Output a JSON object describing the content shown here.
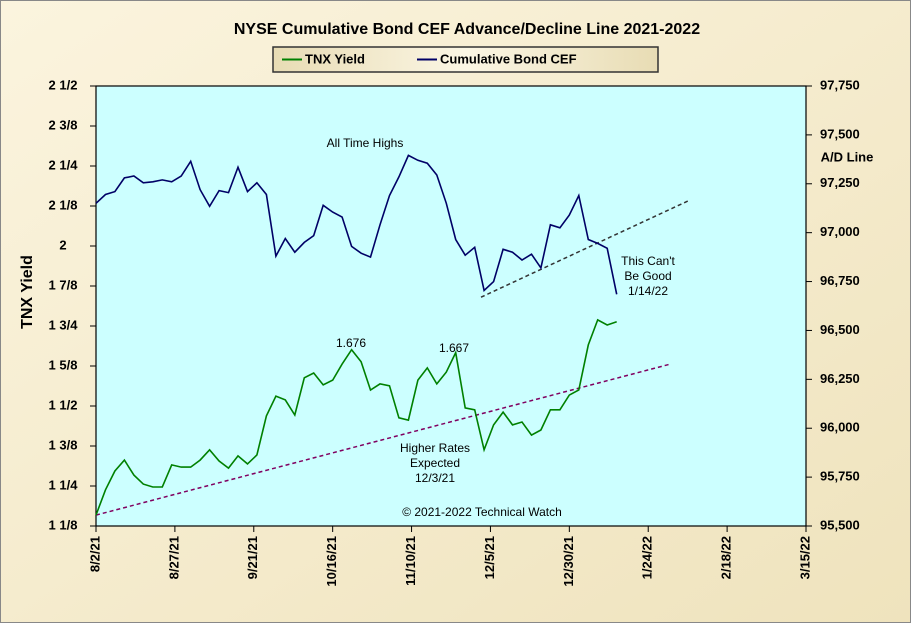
{
  "chart_data": {
    "type": "line",
    "title": "NYSE Cumulative  Bond CEF Advance/Decline  Line 2021-2022",
    "y_label": "TNX Yield",
    "y2_label": "A/D Line",
    "x": [
      "2021-08-02",
      "2021-08-05",
      "2021-08-08",
      "2021-08-11",
      "2021-08-14",
      "2021-08-17",
      "2021-08-20",
      "2021-08-23",
      "2021-08-26",
      "2021-08-29",
      "2021-09-01",
      "2021-09-04",
      "2021-09-07",
      "2021-09-10",
      "2021-09-13",
      "2021-09-16",
      "2021-09-19",
      "2021-09-22",
      "2021-09-25",
      "2021-09-28",
      "2021-10-01",
      "2021-10-04",
      "2021-10-07",
      "2021-10-10",
      "2021-10-13",
      "2021-10-16",
      "2021-10-19",
      "2021-10-22",
      "2021-10-25",
      "2021-10-28",
      "2021-10-31",
      "2021-11-03",
      "2021-11-06",
      "2021-11-09",
      "2021-11-12",
      "2021-11-15",
      "2021-11-18",
      "2021-11-21",
      "2021-11-24",
      "2021-11-27",
      "2021-11-30",
      "2021-12-03",
      "2021-12-06",
      "2021-12-09",
      "2021-12-12",
      "2021-12-15",
      "2021-12-18",
      "2021-12-21",
      "2021-12-24",
      "2021-12-27",
      "2021-12-30",
      "2022-01-02",
      "2022-01-05",
      "2022-01-08",
      "2022-01-11",
      "2022-01-14"
    ],
    "series": [
      {
        "name": "TNX Yield",
        "color": "#008000",
        "axis": "y",
        "values": [
          1.159,
          1.238,
          1.297,
          1.331,
          1.284,
          1.256,
          1.247,
          1.247,
          1.316,
          1.309,
          1.309,
          1.331,
          1.363,
          1.328,
          1.306,
          1.344,
          1.319,
          1.347,
          1.469,
          1.531,
          1.519,
          1.472,
          1.588,
          1.603,
          1.566,
          1.581,
          1.631,
          1.676,
          1.638,
          1.55,
          1.569,
          1.563,
          1.463,
          1.456,
          1.581,
          1.619,
          1.569,
          1.606,
          1.667,
          1.494,
          1.488,
          1.363,
          1.441,
          1.481,
          1.441,
          1.45,
          1.409,
          1.425,
          1.488,
          1.488,
          1.534,
          1.55,
          1.691,
          1.769,
          1.753,
          1.763
        ]
      },
      {
        "name": "Cumulative Bond CEF",
        "color": "#000066",
        "axis": "y2",
        "values": [
          97150,
          97195,
          97210,
          97280,
          97290,
          97255,
          97260,
          97270,
          97260,
          97290,
          97365,
          97220,
          97135,
          97215,
          97205,
          97335,
          97210,
          97255,
          97195,
          96880,
          96970,
          96900,
          96950,
          96985,
          97140,
          97105,
          97080,
          96930,
          96895,
          96875,
          97040,
          97190,
          97285,
          97395,
          97370,
          97355,
          97295,
          97150,
          96965,
          96885,
          96925,
          96705,
          96750,
          96915,
          96900,
          96860,
          96890,
          96820,
          97040,
          97025,
          97090,
          97190,
          96965,
          96945,
          96920,
          96685
        ]
      }
    ],
    "trendlines": [
      {
        "color": "#333333",
        "axis": "y2",
        "x": [
          "2021-12-02",
          "2022-02-06"
        ],
        "values": [
          96670,
          97165
        ]
      },
      {
        "color": "#800060",
        "axis": "y",
        "x": [
          "2021-08-02",
          "2022-01-31"
        ],
        "values": [
          1.159,
          1.631
        ]
      }
    ],
    "annotations": [
      {
        "text": "All Time Highs",
        "color": "#800080"
      },
      {
        "text": "1.676",
        "color": "#000000"
      },
      {
        "text": "1.667",
        "color": "#000000"
      },
      {
        "text": "Higher Rates",
        "color": "#999999"
      },
      {
        "text": "Expected",
        "color": "#999999"
      },
      {
        "text": "12/3/21",
        "color": "#999999"
      },
      {
        "text": "This Can't",
        "color": "#e0308a"
      },
      {
        "text": "Be Good",
        "color": "#e0308a"
      },
      {
        "text": "1/14/22",
        "color": "#999999"
      },
      {
        "text": "© 2021-2022  Technical Watch",
        "color": "#000000"
      }
    ],
    "xlim": [
      "2021-08-02",
      "2022-03-15"
    ],
    "xticks": [
      {
        "value": "2021-08-02",
        "label": "8/2/21"
      },
      {
        "value": "2021-08-27",
        "label": "8/27/21"
      },
      {
        "value": "2021-09-21",
        "label": "9/21/21"
      },
      {
        "value": "2021-10-16",
        "label": "10/16/21"
      },
      {
        "value": "2021-11-10",
        "label": "11/10/21"
      },
      {
        "value": "2021-12-05",
        "label": "12/5/21"
      },
      {
        "value": "2021-12-30",
        "label": "12/30/21"
      },
      {
        "value": "2022-01-24",
        "label": "1/24/22"
      },
      {
        "value": "2022-02-18",
        "label": "2/18/22"
      },
      {
        "value": "2022-03-15",
        "label": "3/15/22"
      }
    ],
    "ylim": [
      1.125,
      2.5
    ],
    "yticks": [
      {
        "value": 1.125,
        "label": "1 1/8"
      },
      {
        "value": 1.25,
        "label": "1 1/4"
      },
      {
        "value": 1.375,
        "label": "1 3/8"
      },
      {
        "value": 1.5,
        "label": "1 1/2"
      },
      {
        "value": 1.625,
        "label": "1 5/8"
      },
      {
        "value": 1.75,
        "label": "1 3/4"
      },
      {
        "value": 1.875,
        "label": "1 7/8"
      },
      2,
      {
        "value": 2.125,
        "label": "2 1/8"
      },
      {
        "value": 2.25,
        "label": "2 1/4"
      },
      {
        "value": 2.375,
        "label": "2 3/8"
      },
      {
        "value": 2.5,
        "label": "2 1/2"
      }
    ],
    "y2lim": [
      95500,
      97750
    ],
    "y2ticks": [
      {
        "value": 95500,
        "label": "95,500"
      },
      {
        "value": 95750,
        "label": "95,750"
      },
      {
        "value": 96000,
        "label": "96,000"
      },
      {
        "value": 96250,
        "label": "96,250"
      },
      {
        "value": 96500,
        "label": "96,500"
      },
      {
        "value": 96750,
        "label": "96,750"
      },
      {
        "value": 97000,
        "label": "97,000"
      },
      {
        "value": 97250,
        "label": "97,250"
      },
      {
        "value": 97500,
        "label": "97,500"
      },
      {
        "value": 97750,
        "label": "97,750"
      }
    ],
    "legend": "top",
    "plot_background": "#ccffff"
  }
}
